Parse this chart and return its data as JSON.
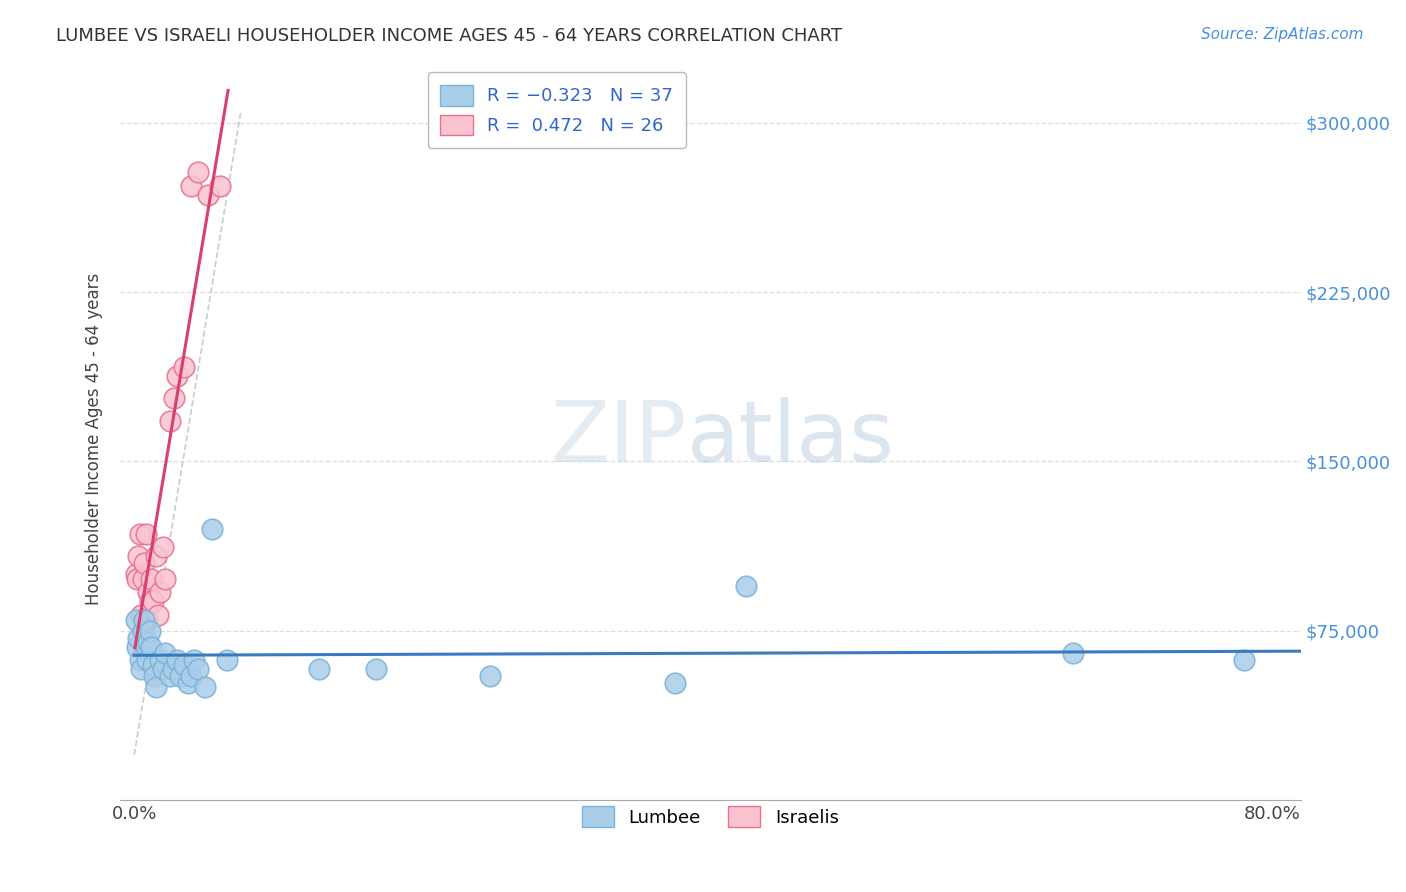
{
  "title": "LUMBEE VS ISRAELI HOUSEHOLDER INCOME AGES 45 - 64 YEARS CORRELATION CHART",
  "source": "Source: ZipAtlas.com",
  "ylabel": "Householder Income Ages 45 - 64 years",
  "xlim": [
    -0.01,
    0.82
  ],
  "ylim": [
    0,
    320000
  ],
  "yticks": [
    75000,
    150000,
    225000,
    300000
  ],
  "ytick_labels": [
    "$75,000",
    "$150,000",
    "$225,000",
    "$300,000"
  ],
  "lumbee_color": "#aacde8",
  "lumbee_edge": "#7ab3d9",
  "israeli_color": "#f9c4d0",
  "israeli_edge": "#e87090",
  "trend_lumbee_color": "#3a7abf",
  "trend_israeli_color": "#d94070",
  "ref_line_color": "#cccccc",
  "background_color": "#ffffff",
  "grid_color": "#dddddd",
  "ytick_color": "#4a90d9",
  "lumbee_x": [
    0.001,
    0.002,
    0.003,
    0.004,
    0.005,
    0.006,
    0.007,
    0.008,
    0.009,
    0.01,
    0.011,
    0.012,
    0.013,
    0.014,
    0.015,
    0.018,
    0.02,
    0.022,
    0.025,
    0.027,
    0.03,
    0.032,
    0.035,
    0.038,
    0.04,
    0.042,
    0.045,
    0.05,
    0.055,
    0.065,
    0.13,
    0.17,
    0.25,
    0.38,
    0.43,
    0.66,
    0.78
  ],
  "lumbee_y": [
    80000,
    68000,
    72000,
    62000,
    58000,
    75000,
    80000,
    68000,
    62000,
    70000,
    75000,
    68000,
    60000,
    55000,
    50000,
    62000,
    58000,
    65000,
    55000,
    58000,
    62000,
    55000,
    60000,
    52000,
    55000,
    62000,
    58000,
    50000,
    120000,
    62000,
    58000,
    58000,
    55000,
    52000,
    95000,
    65000,
    62000
  ],
  "israeli_x": [
    0.001,
    0.002,
    0.003,
    0.004,
    0.005,
    0.006,
    0.007,
    0.008,
    0.009,
    0.01,
    0.011,
    0.012,
    0.013,
    0.015,
    0.017,
    0.018,
    0.02,
    0.022,
    0.025,
    0.028,
    0.03,
    0.035,
    0.04,
    0.045,
    0.052,
    0.06
  ],
  "israeli_y": [
    100000,
    98000,
    108000,
    118000,
    82000,
    98000,
    105000,
    118000,
    80000,
    92000,
    88000,
    98000,
    88000,
    108000,
    82000,
    92000,
    112000,
    98000,
    168000,
    178000,
    188000,
    192000,
    272000,
    278000,
    268000,
    272000
  ]
}
